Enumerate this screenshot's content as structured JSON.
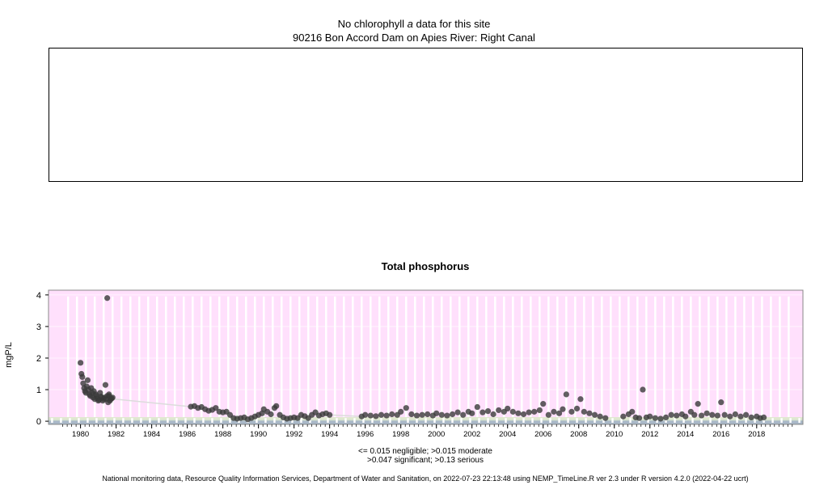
{
  "header": {
    "no_data_prefix": "No chlorophyll",
    "no_data_italic": "a",
    "no_data_suffix": "data for this site",
    "site": "90216 Bon Accord Dam on Apies River: Right Canal"
  },
  "chart_data": {
    "type": "scatter",
    "title": "Total phosphorus",
    "ylabel": "mgP/L",
    "xlabel": "",
    "xlim": [
      1978.2,
      2020.6
    ],
    "ylim": [
      -0.1,
      4.15
    ],
    "y_ticks": [
      "0",
      "1",
      "2",
      "3",
      "4"
    ],
    "x_ticks": [
      "1980",
      "1982",
      "1984",
      "1986",
      "1988",
      "1990",
      "1992",
      "1994",
      "1996",
      "1998",
      "2000",
      "2002",
      "2004",
      "2006",
      "2008",
      "2010",
      "2012",
      "2014",
      "2016",
      "2018"
    ],
    "thresholds": [
      {
        "label": "negligible",
        "value": 0.015,
        "color": "#a9b8c8"
      },
      {
        "label": "moderate",
        "value": 0.047,
        "color": "#c8d8c8"
      },
      {
        "label": "significant",
        "value": 0.13,
        "color": "#e0e8d0"
      },
      {
        "label": "serious",
        "value": 4.15,
        "color": "#ffe0fc"
      }
    ],
    "point_color": "#3a3a3a",
    "series": [
      {
        "x": [
          1980.0,
          1980.05,
          1980.1,
          1980.15,
          1980.2,
          1980.25,
          1980.3,
          1980.35,
          1980.4,
          1980.45,
          1980.5,
          1980.55,
          1980.6,
          1980.65,
          1980.7,
          1980.8,
          1980.9,
          1981.0,
          1981.1,
          1981.2,
          1981.3,
          1981.4,
          1981.5,
          1981.6,
          1981.7,
          1981.8,
          1980.75,
          1980.85,
          1980.95,
          1981.05,
          1981.15,
          1981.25,
          1981.35,
          1981.45,
          1981.55,
          1981.65,
          1981.75,
          1981.5,
          1981.6
        ],
        "y": [
          1.85,
          1.5,
          1.4,
          1.2,
          1.05,
          0.95,
          0.9,
          1.1,
          1.3,
          1.0,
          0.85,
          0.8,
          1.05,
          0.9,
          0.75,
          0.7,
          0.8,
          0.65,
          0.9,
          0.75,
          0.7,
          1.15,
          0.8,
          0.85,
          0.7,
          0.75,
          0.95,
          0.85,
          0.72,
          0.68,
          0.78,
          0.65,
          0.75,
          0.7,
          0.6,
          0.65,
          0.72,
          3.9,
          0.8
        ]
      }
    ],
    "gaps_note": "Dense monthly samples 1986-2018 with values mostly 0.05-0.5 mgP/L; isolated highs 0.85 (2007.3), 0.7 (2008.1), 1.0 (2011.6), 0.55 (2014.7), 0.6 (2016.0)",
    "extra_points": [
      [
        1986.2,
        0.46
      ],
      [
        1986.4,
        0.48
      ],
      [
        1986.6,
        0.42
      ],
      [
        1986.8,
        0.45
      ],
      [
        1987.0,
        0.38
      ],
      [
        1987.2,
        0.33
      ],
      [
        1987.4,
        0.36
      ],
      [
        1987.6,
        0.42
      ],
      [
        1987.8,
        0.3
      ],
      [
        1988.0,
        0.28
      ],
      [
        1988.2,
        0.3
      ],
      [
        1988.4,
        0.2
      ],
      [
        1988.6,
        0.1
      ],
      [
        1988.8,
        0.08
      ],
      [
        1989.0,
        0.1
      ],
      [
        1989.2,
        0.12
      ],
      [
        1989.4,
        0.06
      ],
      [
        1989.6,
        0.1
      ],
      [
        1989.8,
        0.15
      ],
      [
        1990.0,
        0.2
      ],
      [
        1990.2,
        0.25
      ],
      [
        1990.3,
        0.38
      ],
      [
        1990.5,
        0.3
      ],
      [
        1990.7,
        0.22
      ],
      [
        1990.9,
        0.42
      ],
      [
        1991.0,
        0.48
      ],
      [
        1991.2,
        0.2
      ],
      [
        1991.4,
        0.12
      ],
      [
        1991.6,
        0.08
      ],
      [
        1991.8,
        0.1
      ],
      [
        1992.0,
        0.12
      ],
      [
        1992.2,
        0.1
      ],
      [
        1992.4,
        0.2
      ],
      [
        1992.6,
        0.16
      ],
      [
        1992.8,
        0.1
      ],
      [
        1993.0,
        0.2
      ],
      [
        1993.2,
        0.28
      ],
      [
        1993.4,
        0.18
      ],
      [
        1993.6,
        0.22
      ],
      [
        1993.8,
        0.25
      ],
      [
        1994.0,
        0.2
      ],
      [
        1995.8,
        0.15
      ],
      [
        1996.0,
        0.2
      ],
      [
        1996.3,
        0.18
      ],
      [
        1996.6,
        0.16
      ],
      [
        1996.9,
        0.2
      ],
      [
        1997.2,
        0.18
      ],
      [
        1997.5,
        0.22
      ],
      [
        1997.8,
        0.2
      ],
      [
        1998.0,
        0.3
      ],
      [
        1998.3,
        0.42
      ],
      [
        1998.6,
        0.22
      ],
      [
        1998.9,
        0.18
      ],
      [
        1999.2,
        0.2
      ],
      [
        1999.5,
        0.22
      ],
      [
        1999.8,
        0.18
      ],
      [
        2000.0,
        0.25
      ],
      [
        2000.3,
        0.2
      ],
      [
        2000.6,
        0.18
      ],
      [
        2000.9,
        0.22
      ],
      [
        2001.2,
        0.28
      ],
      [
        2001.5,
        0.2
      ],
      [
        2001.8,
        0.3
      ],
      [
        2002.0,
        0.25
      ],
      [
        2002.3,
        0.45
      ],
      [
        2002.6,
        0.28
      ],
      [
        2002.9,
        0.32
      ],
      [
        2003.2,
        0.22
      ],
      [
        2003.5,
        0.35
      ],
      [
        2003.8,
        0.3
      ],
      [
        2004.0,
        0.4
      ],
      [
        2004.3,
        0.3
      ],
      [
        2004.6,
        0.25
      ],
      [
        2004.9,
        0.22
      ],
      [
        2005.2,
        0.28
      ],
      [
        2005.5,
        0.3
      ],
      [
        2005.8,
        0.35
      ],
      [
        2006.0,
        0.55
      ],
      [
        2006.3,
        0.2
      ],
      [
        2006.6,
        0.3
      ],
      [
        2006.9,
        0.25
      ],
      [
        2007.1,
        0.38
      ],
      [
        2007.3,
        0.85
      ],
      [
        2007.6,
        0.3
      ],
      [
        2007.9,
        0.4
      ],
      [
        2008.1,
        0.7
      ],
      [
        2008.3,
        0.3
      ],
      [
        2008.6,
        0.25
      ],
      [
        2008.9,
        0.2
      ],
      [
        2009.2,
        0.15
      ],
      [
        2009.5,
        0.1
      ],
      [
        2010.5,
        0.15
      ],
      [
        2010.8,
        0.22
      ],
      [
        2011.0,
        0.3
      ],
      [
        2011.2,
        0.12
      ],
      [
        2011.4,
        0.1
      ],
      [
        2011.6,
        1.0
      ],
      [
        2011.8,
        0.12
      ],
      [
        2012.0,
        0.15
      ],
      [
        2012.3,
        0.1
      ],
      [
        2012.6,
        0.08
      ],
      [
        2012.9,
        0.12
      ],
      [
        2013.2,
        0.2
      ],
      [
        2013.5,
        0.18
      ],
      [
        2013.8,
        0.22
      ],
      [
        2014.0,
        0.15
      ],
      [
        2014.3,
        0.3
      ],
      [
        2014.5,
        0.2
      ],
      [
        2014.7,
        0.55
      ],
      [
        2014.9,
        0.18
      ],
      [
        2015.2,
        0.25
      ],
      [
        2015.5,
        0.2
      ],
      [
        2015.8,
        0.18
      ],
      [
        2016.0,
        0.6
      ],
      [
        2016.2,
        0.2
      ],
      [
        2016.5,
        0.15
      ],
      [
        2016.8,
        0.22
      ],
      [
        2017.1,
        0.15
      ],
      [
        2017.4,
        0.2
      ],
      [
        2017.7,
        0.12
      ],
      [
        2018.0,
        0.15
      ],
      [
        2018.2,
        0.1
      ],
      [
        2018.4,
        0.12
      ]
    ]
  },
  "notes": {
    "line1": "<= 0.015 negligible; >0.015 moderate",
    "line2": ">0.047 significant; >0.13 serious"
  },
  "footer": "National monitoring data, Resource Quality Information Services, Department of Water and Sanitation, on 2022-07-23 22:13:48 using NEMP_TimeLine.R ver 2.3 under R version 4.2.0 (2022-04-22 ucrt)"
}
